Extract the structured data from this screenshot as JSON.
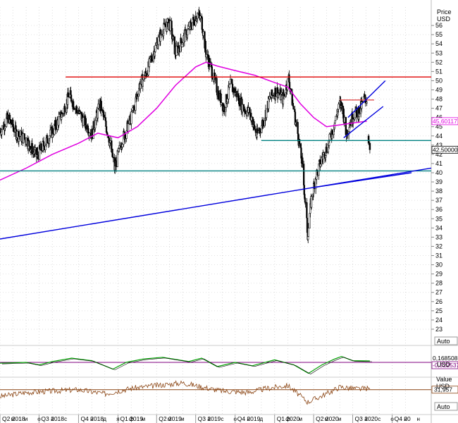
{
  "chart_data": {
    "type": "candlestick",
    "currency_label": "USD",
    "price_scale": {
      "title": "Price",
      "unit": "USD",
      "ylim": [
        22,
        58
      ],
      "ticks": [
        23,
        24,
        25,
        26,
        27,
        28,
        29,
        30,
        31,
        32,
        33,
        34,
        35,
        36,
        37,
        38,
        39,
        40,
        41,
        42,
        43,
        44,
        45,
        46,
        47,
        48,
        49,
        50,
        51,
        52,
        53,
        54,
        55,
        56
      ]
    },
    "time_axis": {
      "range": [
        "2018-04-01",
        "2020-12-31"
      ],
      "month_labels": [
        {
          "t": "2018-05-01",
          "label": "м"
        },
        {
          "t": "2018-06-01",
          "label": "и"
        },
        {
          "t": "2018-08-01",
          "label": "а"
        },
        {
          "t": "2018-09-01",
          "label": "с"
        },
        {
          "t": "2018-11-01",
          "label": "н"
        },
        {
          "t": "2018-12-01",
          "label": "д"
        },
        {
          "t": "2019-01-01",
          "label": "я"
        },
        {
          "t": "2019-02-01",
          "label": "ф"
        },
        {
          "t": "2019-03-01",
          "label": "м"
        },
        {
          "t": "2019-05-01",
          "label": "м"
        },
        {
          "t": "2019-06-01",
          "label": "и"
        },
        {
          "t": "2019-08-01",
          "label": "а"
        },
        {
          "t": "2019-09-01",
          "label": "с"
        },
        {
          "t": "2019-11-01",
          "label": "н"
        },
        {
          "t": "2019-12-01",
          "label": "д"
        },
        {
          "t": "2020-02-01",
          "label": "ф"
        },
        {
          "t": "2020-03-01",
          "label": "м"
        },
        {
          "t": "2020-05-01",
          "label": "м"
        },
        {
          "t": "2020-06-01",
          "label": "и"
        },
        {
          "t": "2020-08-01",
          "label": "а"
        },
        {
          "t": "2020-09-01",
          "label": "с"
        },
        {
          "t": "2020-11-01",
          "label": "н"
        }
      ],
      "quarter_labels": [
        {
          "t": "2018-04-01",
          "label": "Q2 2018"
        },
        {
          "t": "2018-07-01",
          "label": "Q3 2018"
        },
        {
          "t": "2018-10-01",
          "label": "Q4 2018"
        },
        {
          "t": "2019-01-01",
          "label": "Q1 2019"
        },
        {
          "t": "2019-04-01",
          "label": "Q2 2019"
        },
        {
          "t": "2019-07-01",
          "label": "Q3 2019"
        },
        {
          "t": "2019-10-01",
          "label": "Q4 2019"
        },
        {
          "t": "2020-01-01",
          "label": "Q1 2020"
        },
        {
          "t": "2020-04-01",
          "label": "Q2 2020"
        },
        {
          "t": "2020-07-01",
          "label": "Q3 2020"
        },
        {
          "t": "2020-10-01",
          "label": "Q4 20"
        }
      ],
      "extra_letters": [
        {
          "t": "2018-07-01",
          "label": "о"
        },
        {
          "t": "2019-10-01",
          "label": "о"
        },
        {
          "t": "2020-10-01",
          "label": "о"
        },
        {
          "t": "2020-12-01",
          "label": "н"
        }
      ]
    },
    "price_path": [
      [
        "2018-04-01",
        44.5
      ],
      [
        "2018-04-20",
        46.0
      ],
      [
        "2018-05-10",
        44.2
      ],
      [
        "2018-06-01",
        43.6
      ],
      [
        "2018-06-25",
        41.8
      ],
      [
        "2018-07-15",
        43.2
      ],
      [
        "2018-08-05",
        44.8
      ],
      [
        "2018-08-25",
        46.5
      ],
      [
        "2018-09-10",
        48.5
      ],
      [
        "2018-09-25",
        47.0
      ],
      [
        "2018-10-15",
        45.5
      ],
      [
        "2018-11-01",
        44.2
      ],
      [
        "2018-11-20",
        47.5
      ],
      [
        "2018-12-10",
        44.0
      ],
      [
        "2018-12-24",
        40.5
      ],
      [
        "2019-01-10",
        43.5
      ],
      [
        "2019-02-01",
        46.0
      ],
      [
        "2019-02-20",
        49.5
      ],
      [
        "2019-03-10",
        51.0
      ],
      [
        "2019-03-28",
        53.5
      ],
      [
        "2019-04-15",
        55.5
      ],
      [
        "2019-05-01",
        56.3
      ],
      [
        "2019-05-15",
        53.0
      ],
      [
        "2019-06-01",
        54.5
      ],
      [
        "2019-06-20",
        56.0
      ],
      [
        "2019-07-05",
        57.3
      ],
      [
        "2019-07-15",
        56.5
      ],
      [
        "2019-07-25",
        53.0
      ],
      [
        "2019-08-05",
        51.5
      ],
      [
        "2019-08-20",
        49.0
      ],
      [
        "2019-09-05",
        47.0
      ],
      [
        "2019-09-20",
        49.5
      ],
      [
        "2019-10-05",
        48.5
      ],
      [
        "2019-10-20",
        47.0
      ],
      [
        "2019-11-05",
        46.5
      ],
      [
        "2019-11-20",
        44.0
      ],
      [
        "2019-12-05",
        45.5
      ],
      [
        "2019-12-20",
        48.0
      ],
      [
        "2020-01-05",
        49.0
      ],
      [
        "2020-01-20",
        48.0
      ],
      [
        "2020-02-03",
        50.3
      ],
      [
        "2020-02-12",
        47.5
      ],
      [
        "2020-02-25",
        44.0
      ],
      [
        "2020-03-05",
        41.0
      ],
      [
        "2020-03-12",
        37.0
      ],
      [
        "2020-03-18",
        33.2
      ],
      [
        "2020-03-25",
        36.5
      ],
      [
        "2020-04-05",
        39.5
      ],
      [
        "2020-04-20",
        41.5
      ],
      [
        "2020-05-05",
        43.0
      ],
      [
        "2020-05-20",
        45.5
      ],
      [
        "2020-06-01",
        47.5
      ],
      [
        "2020-06-08",
        47.0
      ],
      [
        "2020-06-15",
        44.2
      ],
      [
        "2020-06-25",
        45.5
      ],
      [
        "2020-07-05",
        46.5
      ],
      [
        "2020-07-15",
        46.5
      ],
      [
        "2020-07-28",
        48.0
      ],
      [
        "2020-08-03",
        48.0
      ]
    ],
    "last_candles": [
      {
        "t": "2020-08-07",
        "open": 44.0,
        "high": 44.2,
        "low": 43.0,
        "close": 43.2
      },
      {
        "t": "2020-08-10",
        "open": 43.2,
        "high": 43.4,
        "low": 42.1,
        "close": 42.5
      }
    ],
    "sma": {
      "color": "#e000e0",
      "points": [
        [
          "2018-04-01",
          39.2
        ],
        [
          "2018-06-01",
          40.5
        ],
        [
          "2018-08-01",
          42.0
        ],
        [
          "2018-10-01",
          43.2
        ],
        [
          "2018-11-15",
          44.3
        ],
        [
          "2019-01-01",
          43.8
        ],
        [
          "2019-02-15",
          45.0
        ],
        [
          "2019-04-01",
          47.0
        ],
        [
          "2019-05-15",
          49.5
        ],
        [
          "2019-07-01",
          51.5
        ],
        [
          "2019-07-25",
          52.0
        ],
        [
          "2019-08-20",
          51.6
        ],
        [
          "2019-10-01",
          51.1
        ],
        [
          "2019-11-15",
          50.6
        ],
        [
          "2020-01-01",
          49.8
        ],
        [
          "2020-02-01",
          49.3
        ],
        [
          "2020-03-01",
          47.5
        ],
        [
          "2020-04-01",
          46.0
        ],
        [
          "2020-05-01",
          45.0
        ],
        [
          "2020-06-01",
          45.2
        ],
        [
          "2020-07-01",
          45.4
        ],
        [
          "2020-08-03",
          45.6
        ]
      ]
    },
    "drawn_lines": [
      {
        "type": "resistance",
        "color": "#e00000",
        "from": [
          "2018-09-01",
          50.4
        ],
        "to": [
          "2020-12-31",
          50.4
        ]
      },
      {
        "type": "level",
        "color": "#e05050",
        "from": [
          "2020-06-01",
          47.9
        ],
        "to": [
          "2020-08-20",
          47.9
        ]
      },
      {
        "type": "support",
        "color": "#008080",
        "from": [
          "2019-12-01",
          43.5
        ],
        "to": [
          "2020-12-31",
          43.5
        ]
      },
      {
        "type": "support",
        "color": "#008080",
        "from": [
          "2018-04-01",
          40.2
        ],
        "to": [
          "2020-12-31",
          40.2
        ]
      },
      {
        "type": "trendline",
        "color": "#0000dd",
        "from": [
          "2018-04-01",
          32.8
        ],
        "to": [
          "2020-12-31",
          40.5
        ]
      },
      {
        "type": "trendline",
        "color": "#0000dd",
        "from": [
          "2020-04-01",
          38.4
        ],
        "to": [
          "2020-11-15",
          40.0
        ]
      },
      {
        "type": "channel",
        "color": "#0000dd",
        "from": [
          "2020-06-20",
          46.0
        ],
        "to": [
          "2020-09-15",
          50.0
        ]
      },
      {
        "type": "channel",
        "color": "#0000dd",
        "from": [
          "2020-06-10",
          43.8
        ],
        "to": [
          "2020-09-10",
          47.2
        ]
      }
    ],
    "price_tags": [
      {
        "value": 45.6,
        "text": "45,60117",
        "color": "#e000e0"
      },
      {
        "value": 42.5,
        "text": "42,50000",
        "color": "#000000"
      }
    ],
    "indicator1": {
      "color": "#00a000",
      "points": [
        [
          "2018-04-01",
          -0.1
        ],
        [
          "2018-06-01",
          0.0
        ],
        [
          "2018-07-01",
          -0.3
        ],
        [
          "2018-08-01",
          0.1
        ],
        [
          "2018-09-15",
          0.5
        ],
        [
          "2018-11-01",
          0.2
        ],
        [
          "2018-12-20",
          -0.8
        ],
        [
          "2019-01-20",
          0.0
        ],
        [
          "2019-03-01",
          0.4
        ],
        [
          "2019-04-15",
          0.6
        ],
        [
          "2019-06-15",
          0.1
        ],
        [
          "2019-07-15",
          0.5
        ],
        [
          "2019-08-20",
          -0.5
        ],
        [
          "2019-10-01",
          0.0
        ],
        [
          "2019-11-10",
          -0.4
        ],
        [
          "2020-01-01",
          0.3
        ],
        [
          "2020-02-15",
          -0.3
        ],
        [
          "2020-03-20",
          -1.3
        ],
        [
          "2020-04-20",
          -0.3
        ],
        [
          "2020-05-20",
          0.4
        ],
        [
          "2020-06-05",
          0.7
        ],
        [
          "2020-07-01",
          0.2
        ],
        [
          "2020-08-10",
          0.17
        ]
      ],
      "last_value_text": "0,168508",
      "zero_line_text": "-0,322537",
      "button": "Auto",
      "unit": "USD"
    },
    "indicator2": {
      "title": "Value",
      "unit": "USD",
      "color": "#8b4513",
      "points": [
        [
          "2018-04-01",
          22
        ],
        [
          "2018-06-01",
          28
        ],
        [
          "2018-08-01",
          30
        ],
        [
          "2018-10-01",
          32
        ],
        [
          "2018-12-01",
          26
        ],
        [
          "2019-02-01",
          34
        ],
        [
          "2019-04-01",
          38
        ],
        [
          "2019-06-01",
          42
        ],
        [
          "2019-07-15",
          36
        ],
        [
          "2019-09-01",
          30
        ],
        [
          "2019-11-01",
          28
        ],
        [
          "2019-12-15",
          34
        ],
        [
          "2020-02-01",
          38
        ],
        [
          "2020-03-18",
          14
        ],
        [
          "2020-05-01",
          26
        ],
        [
          "2020-06-01",
          36
        ],
        [
          "2020-07-15",
          33
        ],
        [
          "2020-08-05",
          34
        ],
        [
          "2020-08-10",
          32
        ]
      ],
      "last_value_text": "31,957",
      "button": "Auto"
    }
  }
}
